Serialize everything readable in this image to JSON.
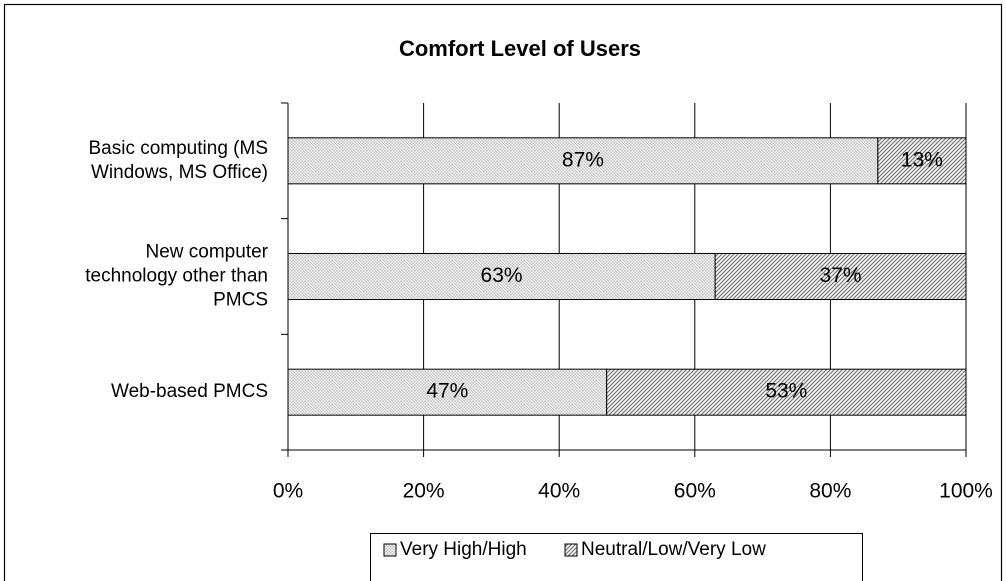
{
  "chart_data": {
    "type": "stacked_barh",
    "title": "Comfort Level of Users",
    "categories": [
      [
        "Basic computing (MS",
        "Windows, MS Office)"
      ],
      [
        "New computer",
        "technology other than",
        "PMCS"
      ],
      [
        "Web-based PMCS"
      ]
    ],
    "series": [
      {
        "name": "Very High/High",
        "color": "#bdbdbd",
        "values": [
          87,
          63,
          47
        ],
        "value_labels": [
          "87%",
          "63%",
          "47%"
        ]
      },
      {
        "name": "Neutral/Low/Very Low",
        "color": "#7a7a7a",
        "values": [
          13,
          37,
          53
        ],
        "value_labels": [
          "13%",
          "37%",
          "53%"
        ]
      }
    ],
    "xlim": [
      0,
      100
    ],
    "xticks": [
      {
        "value": 0,
        "label": "0%"
      },
      {
        "value": 20,
        "label": "20%"
      },
      {
        "value": 40,
        "label": "40%"
      },
      {
        "value": 60,
        "label": "60%"
      },
      {
        "value": 80,
        "label": "80%"
      },
      {
        "value": 100,
        "label": "100%"
      }
    ],
    "grid": true,
    "legend": "bottom"
  }
}
